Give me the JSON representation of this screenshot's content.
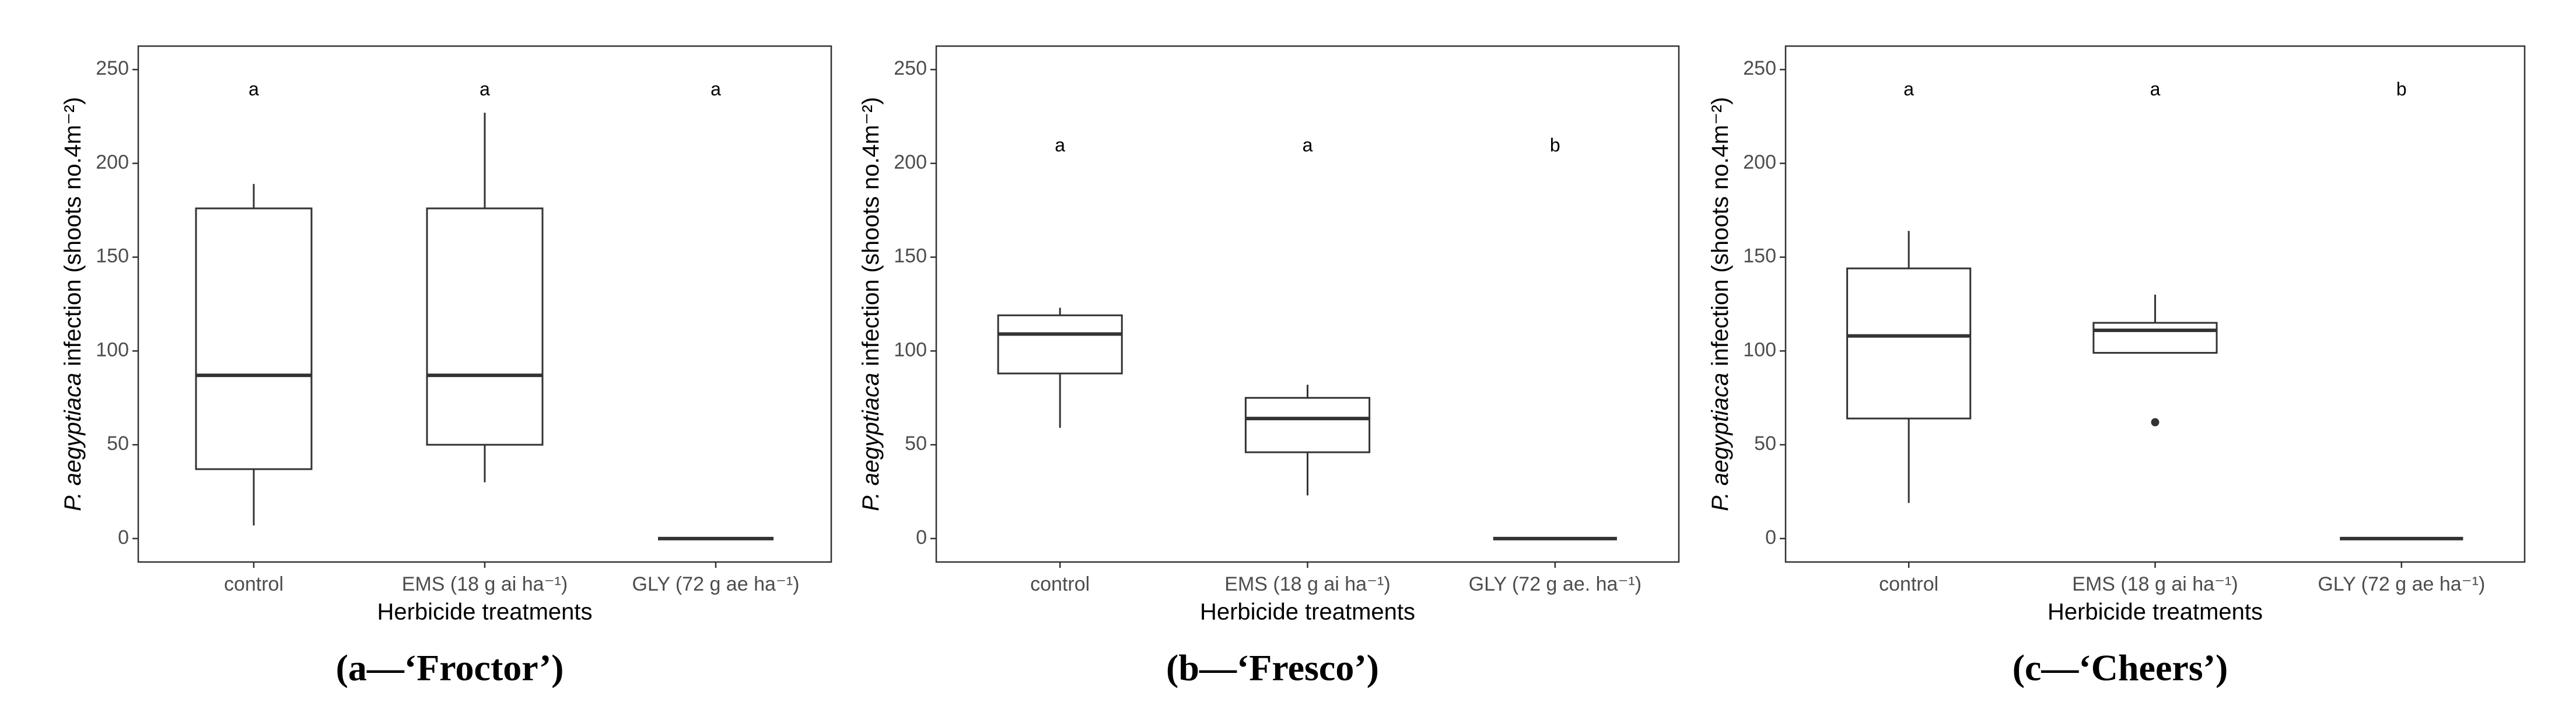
{
  "chart_data": [
    {
      "type": "box",
      "title": "(a—‘Froctor’)",
      "xlabel": "Herbicide treatments",
      "ylabel": [
        "P. aegyptiaca",
        " infection (shoots no.4m⁻²)"
      ],
      "categories": [
        "control",
        "EMS (18 g ai ha⁻¹)",
        "GLY (72 g ae ha⁻¹)"
      ],
      "boxes": [
        {
          "low": 7,
          "q1": 37,
          "median": 87,
          "q3": 176,
          "high": 189,
          "outliers": []
        },
        {
          "low": 30,
          "q1": 50,
          "median": 87,
          "q3": 176,
          "high": 227,
          "outliers": []
        },
        {
          "low": 0,
          "q1": 0,
          "median": 0,
          "q3": 0,
          "high": 0,
          "outliers": []
        }
      ],
      "group_letters": [
        "a",
        "a",
        "a"
      ],
      "ylim": [
        -12.5,
        262.5
      ],
      "yticks": [
        0,
        50,
        100,
        150,
        200,
        250
      ],
      "color": "#333333"
    },
    {
      "type": "box",
      "title": "(b—‘Fresco’)",
      "xlabel": "Herbicide treatments",
      "ylabel": [
        "P. aegyptiaca",
        " infection (shoots no.4m⁻²)"
      ],
      "categories": [
        "control",
        "EMS (18 g ai ha⁻¹)",
        "GLY (72 g ae. ha⁻¹)"
      ],
      "boxes": [
        {
          "low": 59,
          "q1": 88,
          "median": 109,
          "q3": 119,
          "high": 123,
          "outliers": []
        },
        {
          "low": 23,
          "q1": 46,
          "median": 64,
          "q3": 75,
          "high": 82,
          "outliers": []
        },
        {
          "low": 0,
          "q1": 0,
          "median": 0,
          "q3": 0,
          "high": 0,
          "outliers": []
        }
      ],
      "group_letters": [
        "a",
        "a",
        "b"
      ],
      "ylim": [
        -12.5,
        262.5
      ],
      "yticks": [
        0,
        50,
        100,
        150,
        200,
        250
      ],
      "color": "#333333"
    },
    {
      "type": "box",
      "title": "(c—‘Cheers’)",
      "xlabel": "Herbicide treatments",
      "ylabel": [
        "P. aegyptiaca",
        " infection (shoots no.4m⁻²)"
      ],
      "categories": [
        "control",
        "EMS (18 g ai ha⁻¹)",
        "GLY (72 g ae ha⁻¹)"
      ],
      "boxes": [
        {
          "low": 19,
          "q1": 64,
          "median": 108,
          "q3": 144,
          "high": 164,
          "outliers": []
        },
        {
          "low": 99,
          "q1": 99,
          "median": 111,
          "q3": 115,
          "high": 130,
          "outliers": [
            62
          ]
        },
        {
          "low": 0,
          "q1": 0,
          "median": 0,
          "q3": 0,
          "high": 0,
          "outliers": []
        }
      ],
      "group_letters": [
        "a",
        "a",
        "b"
      ],
      "ylim": [
        -12.5,
        262.5
      ],
      "yticks": [
        0,
        50,
        100,
        150,
        200,
        250
      ],
      "color": "#333333"
    }
  ]
}
